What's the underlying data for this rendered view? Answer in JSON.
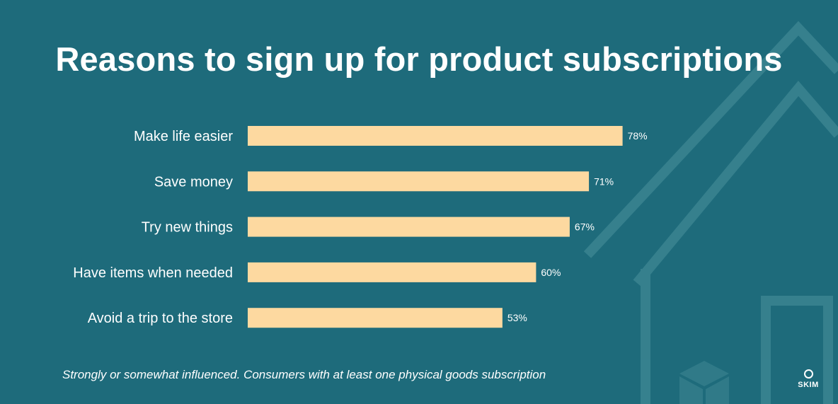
{
  "title": "Reasons to sign up for product subscriptions",
  "footnote": "Strongly or somewhat influenced. Consumers with at least one physical goods subscription",
  "logo": "SKIM",
  "colors": {
    "background": "#1e6b7b",
    "bar": "#fdd9a0",
    "text": "#ffffff"
  },
  "chart_data": {
    "type": "bar",
    "orientation": "horizontal",
    "title": "Reasons to sign up for product subscriptions",
    "categories": [
      "Make life easier",
      "Save money",
      "Try new things",
      "Have items when needed",
      "Avoid a trip to the store"
    ],
    "values": [
      78,
      71,
      67,
      60,
      53
    ],
    "value_labels": [
      "78%",
      "71%",
      "67%",
      "60%",
      "53%"
    ],
    "unit": "%",
    "xlim": [
      0,
      100
    ],
    "grid": false,
    "legend": "none"
  }
}
